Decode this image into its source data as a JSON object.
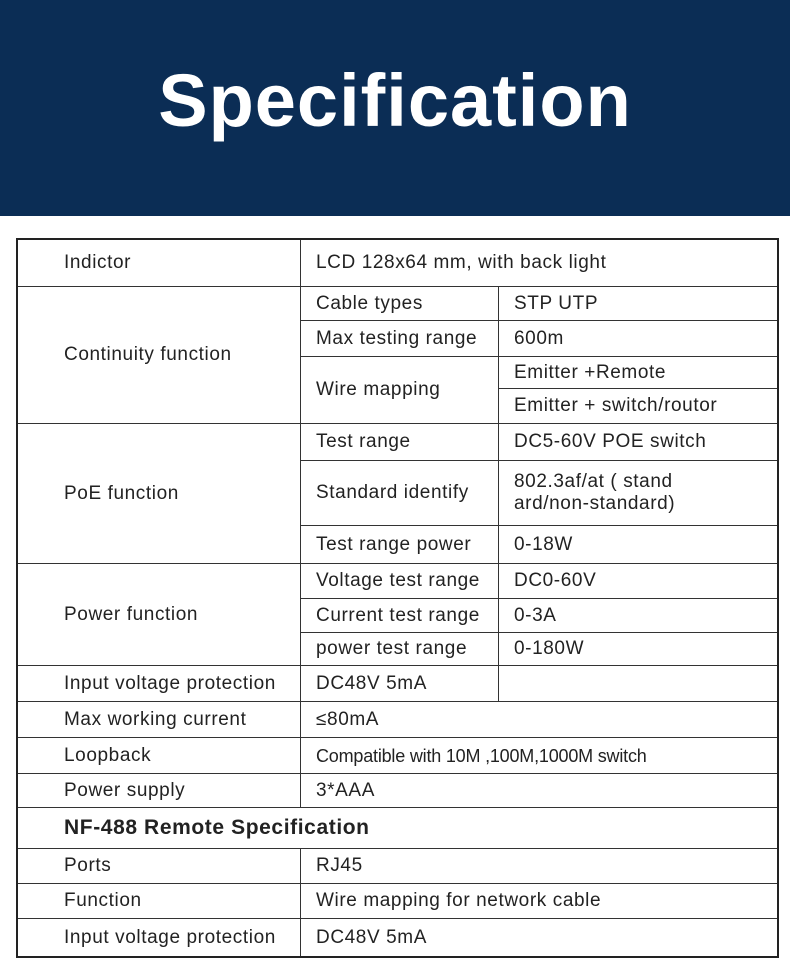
{
  "header": {
    "title": "Specification"
  },
  "table": {
    "cells": [
      "Indictor",
      "LCD 128x64 mm, with back light",
      "Continuity function",
      "Cable types",
      "STP UTP",
      "Max testing range",
      "600m",
      "Wire mapping",
      "Emitter +Remote",
      "Emitter + switch/routor",
      "PoE function",
      "Test range",
      "DC5-60V POE switch",
      "Standard identify",
      "802.3af/at ( stand\nard/non-standard)",
      "Test range power",
      "0-18W",
      "Power function",
      "Voltage test range",
      "DC0-60V",
      "Current test range",
      "0-3A",
      "power test range",
      "0-180W",
      "Input voltage protection",
      "DC48V 5mA",
      "Max working current",
      "≤80mA",
      "Loopback",
      "Compatible with 10M ,100M,1000M switch",
      "Power supply",
      "3*AAA",
      "NF-488 Remote Specification",
      "Ports",
      "RJ45",
      "Function",
      "Wire mapping for network cable",
      "Input voltage protection",
      "DC48V 5mA"
    ]
  }
}
